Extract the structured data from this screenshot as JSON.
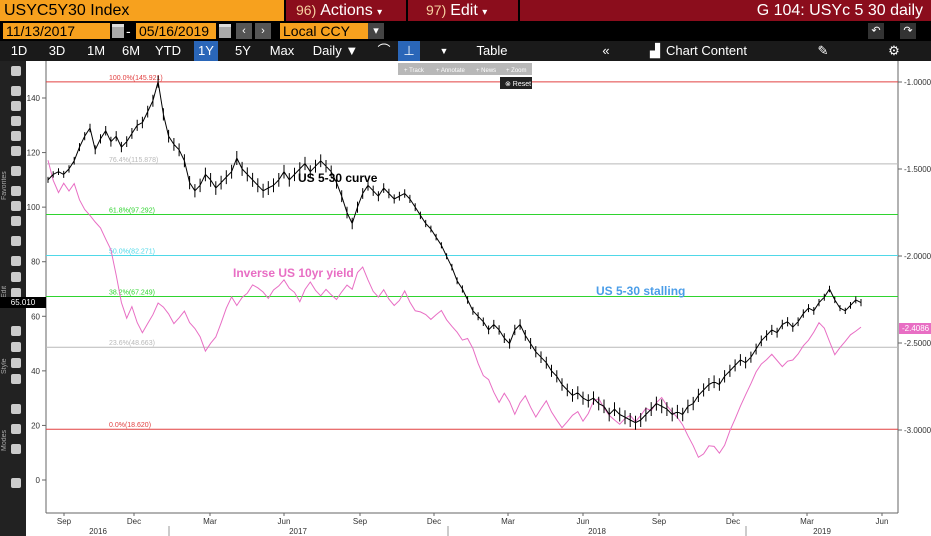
{
  "header": {
    "ticker": "USYC5Y30 Index",
    "actions_num": "96)",
    "actions_label": "Actions",
    "edit_num": "97)",
    "edit_label": "Edit",
    "title": "G 104: USYc 5 30 daily"
  },
  "range": {
    "start": "11/13/2017",
    "dash": "-",
    "end": "05/16/2019",
    "currency": "Local CCY"
  },
  "toolbar": {
    "periods": [
      "1D",
      "3D",
      "1M",
      "6M",
      "YTD",
      "1Y",
      "5Y",
      "Max"
    ],
    "active_period": "1Y",
    "frequency": "Daily",
    "table_label": "Table",
    "chart_content_label": "Chart Content"
  },
  "chart_tools": {
    "labels": [
      "Track",
      "Annotate",
      "News",
      "Zoom"
    ],
    "reset": "Reset"
  },
  "left_panel_labels": [
    "Favorites",
    "Edit",
    "Style",
    "Modes"
  ],
  "left_price_tag": "65.010",
  "right_price_tag": "-2.4086",
  "chart_data": {
    "type": "line",
    "x_tick_months": [
      "Sep",
      "Dec",
      "Mar",
      "Jun",
      "Sep",
      "Dec",
      "Mar",
      "Jun",
      "Sep",
      "Dec",
      "Mar",
      "Jun"
    ],
    "x_tick_years": [
      "2016",
      "2017",
      "2018",
      "2019"
    ],
    "y_left_ticks": [
      "140",
      "120",
      "100",
      "80",
      "60",
      "40",
      "20",
      "0"
    ],
    "y_right_ticks": [
      "-1.0000",
      "-1.5000",
      "-2.0000",
      "-2.5000",
      "-3.0000"
    ],
    "ylim_left": [
      -5,
      150
    ],
    "ylim_right": [
      -3.4,
      -0.85
    ],
    "series": [
      {
        "name": "US 5-30 curve",
        "color": "#000000"
      },
      {
        "name": "Inverse US 10yr yield",
        "color": "#e86ec4"
      }
    ],
    "fib_levels": [
      {
        "label": "100.0%(145.921)",
        "value": 145.921,
        "color": "#e24040"
      },
      {
        "label": "76.4%(115.878)",
        "value": 115.878,
        "color": "#b9b9b9"
      },
      {
        "label": "61.8%(97.292)",
        "value": 97.292,
        "color": "#2fd42f"
      },
      {
        "label": "50.0%(82.271)",
        "value": 82.271,
        "color": "#4fd8e8"
      },
      {
        "label": "38.2%(67.249)",
        "value": 67.249,
        "color": "#2fd42f"
      },
      {
        "label": "23.6%(48.663)",
        "value": 48.663,
        "color": "#b9b9b9"
      },
      {
        "label": "0.0%(18.620)",
        "value": 18.62,
        "color": "#e24040"
      }
    ],
    "annotations": [
      {
        "text": "US 5-30 curve",
        "color": "#000000"
      },
      {
        "text": "Inverse US 10yr yield",
        "color": "#e86ec4"
      },
      {
        "text": "US 5-30 stalling",
        "color": "#4a9de8"
      }
    ],
    "black_path": [
      [
        0,
        110
      ],
      [
        1,
        112
      ],
      [
        2,
        113
      ],
      [
        3,
        112
      ],
      [
        4,
        114
      ],
      [
        5,
        117
      ],
      [
        6,
        122
      ],
      [
        7,
        126
      ],
      [
        8,
        129
      ],
      [
        9,
        121
      ],
      [
        10,
        125
      ],
      [
        11,
        128
      ],
      [
        12,
        124
      ],
      [
        13,
        126
      ],
      [
        14,
        122
      ],
      [
        15,
        124
      ],
      [
        16,
        127
      ],
      [
        17,
        130
      ],
      [
        18,
        131
      ],
      [
        19,
        135
      ],
      [
        20,
        139
      ],
      [
        21,
        146
      ],
      [
        22,
        134
      ],
      [
        23,
        126
      ],
      [
        24,
        123
      ],
      [
        25,
        121
      ],
      [
        26,
        117
      ],
      [
        27,
        109
      ],
      [
        28,
        106
      ],
      [
        29,
        108
      ],
      [
        30,
        112
      ],
      [
        31,
        110
      ],
      [
        32,
        107
      ],
      [
        33,
        109
      ],
      [
        34,
        111
      ],
      [
        35,
        113
      ],
      [
        36,
        118
      ],
      [
        37,
        114
      ],
      [
        38,
        112
      ],
      [
        39,
        110
      ],
      [
        40,
        108
      ],
      [
        41,
        106
      ],
      [
        42,
        107
      ],
      [
        43,
        108
      ],
      [
        44,
        110
      ],
      [
        45,
        113
      ],
      [
        46,
        110
      ],
      [
        47,
        112
      ],
      [
        48,
        114
      ],
      [
        49,
        116
      ],
      [
        50,
        113
      ],
      [
        51,
        115
      ],
      [
        52,
        117
      ],
      [
        53,
        115
      ],
      [
        54,
        113
      ],
      [
        55,
        109
      ],
      [
        56,
        104
      ],
      [
        57,
        98
      ],
      [
        58,
        94
      ],
      [
        59,
        100
      ],
      [
        60,
        105
      ],
      [
        61,
        108
      ],
      [
        62,
        106
      ],
      [
        63,
        104
      ],
      [
        64,
        107
      ],
      [
        65,
        105
      ],
      [
        66,
        103
      ],
      [
        67,
        104
      ],
      [
        68,
        105
      ],
      [
        69,
        103
      ],
      [
        70,
        100
      ],
      [
        71,
        97
      ],
      [
        72,
        94
      ],
      [
        73,
        92
      ],
      [
        74,
        89
      ],
      [
        75,
        86
      ],
      [
        76,
        82
      ],
      [
        77,
        78
      ],
      [
        78,
        73
      ],
      [
        79,
        70
      ],
      [
        80,
        66
      ],
      [
        81,
        62
      ],
      [
        82,
        60
      ],
      [
        83,
        58
      ],
      [
        84,
        55
      ],
      [
        85,
        57
      ],
      [
        86,
        55
      ],
      [
        87,
        52
      ],
      [
        88,
        50
      ],
      [
        89,
        55
      ],
      [
        90,
        57
      ],
      [
        91,
        53
      ],
      [
        92,
        50
      ],
      [
        93,
        47
      ],
      [
        94,
        45
      ],
      [
        95,
        43
      ],
      [
        96,
        40
      ],
      [
        97,
        38
      ],
      [
        98,
        35
      ],
      [
        99,
        33
      ],
      [
        100,
        31
      ],
      [
        101,
        32
      ],
      [
        102,
        30
      ],
      [
        103,
        29
      ],
      [
        104,
        30
      ],
      [
        105,
        28
      ],
      [
        106,
        27
      ],
      [
        107,
        24
      ],
      [
        108,
        26
      ],
      [
        109,
        24
      ],
      [
        110,
        23
      ],
      [
        111,
        22
      ],
      [
        112,
        21
      ],
      [
        113,
        22
      ],
      [
        114,
        24
      ],
      [
        115,
        26
      ],
      [
        116,
        28
      ],
      [
        117,
        27
      ],
      [
        118,
        26
      ],
      [
        119,
        24
      ],
      [
        120,
        25
      ],
      [
        121,
        24
      ],
      [
        122,
        27
      ],
      [
        123,
        28
      ],
      [
        124,
        31
      ],
      [
        125,
        33
      ],
      [
        126,
        35
      ],
      [
        127,
        36
      ],
      [
        128,
        35
      ],
      [
        129,
        38
      ],
      [
        130,
        40
      ],
      [
        131,
        42
      ],
      [
        132,
        44
      ],
      [
        133,
        43
      ],
      [
        134,
        45
      ],
      [
        135,
        48
      ],
      [
        136,
        51
      ],
      [
        137,
        53
      ],
      [
        138,
        55
      ],
      [
        139,
        54
      ],
      [
        140,
        57
      ],
      [
        141,
        58
      ],
      [
        142,
        56
      ],
      [
        143,
        58
      ],
      [
        144,
        61
      ],
      [
        145,
        63
      ],
      [
        146,
        62
      ],
      [
        147,
        65
      ],
      [
        148,
        67
      ],
      [
        149,
        70
      ],
      [
        150,
        66
      ],
      [
        151,
        63
      ],
      [
        152,
        62
      ],
      [
        153,
        64
      ],
      [
        154,
        66
      ],
      [
        155,
        65
      ]
    ],
    "pink_path": [
      [
        0,
        -1.45
      ],
      [
        1,
        -1.55
      ],
      [
        2,
        -1.62
      ],
      [
        3,
        -1.58
      ],
      [
        4,
        -1.64
      ],
      [
        5,
        -1.6
      ],
      [
        6,
        -1.68
      ],
      [
        7,
        -1.72
      ],
      [
        8,
        -1.75
      ],
      [
        9,
        -1.8
      ],
      [
        10,
        -1.85
      ],
      [
        11,
        -1.92
      ],
      [
        12,
        -1.97
      ],
      [
        13,
        -2.1
      ],
      [
        14,
        -2.25
      ],
      [
        15,
        -2.35
      ],
      [
        16,
        -2.3
      ],
      [
        17,
        -2.4
      ],
      [
        18,
        -2.45
      ],
      [
        19,
        -2.38
      ],
      [
        20,
        -2.32
      ],
      [
        21,
        -2.26
      ],
      [
        22,
        -2.3
      ],
      [
        23,
        -2.35
      ],
      [
        24,
        -2.4
      ],
      [
        25,
        -2.35
      ],
      [
        26,
        -2.3
      ],
      [
        27,
        -2.37
      ],
      [
        28,
        -2.42
      ],
      [
        29,
        -2.48
      ],
      [
        30,
        -2.56
      ],
      [
        31,
        -2.5
      ],
      [
        32,
        -2.45
      ],
      [
        33,
        -2.37
      ],
      [
        34,
        -2.3
      ],
      [
        35,
        -2.25
      ],
      [
        36,
        -2.3
      ],
      [
        37,
        -2.24
      ],
      [
        38,
        -2.2
      ],
      [
        39,
        -2.15
      ],
      [
        40,
        -2.18
      ],
      [
        41,
        -2.22
      ],
      [
        42,
        -2.26
      ],
      [
        43,
        -2.2
      ],
      [
        44,
        -2.16
      ],
      [
        45,
        -2.12
      ],
      [
        46,
        -2.18
      ],
      [
        47,
        -2.22
      ],
      [
        48,
        -2.28
      ],
      [
        49,
        -2.2
      ],
      [
        50,
        -2.14
      ],
      [
        51,
        -2.18
      ],
      [
        52,
        -2.22
      ],
      [
        53,
        -2.2
      ],
      [
        54,
        -2.24
      ],
      [
        55,
        -2.26
      ],
      [
        56,
        -2.2
      ],
      [
        57,
        -2.15
      ],
      [
        58,
        -2.18
      ],
      [
        59,
        -2.1
      ],
      [
        60,
        -2.08
      ],
      [
        61,
        -2.15
      ],
      [
        62,
        -2.2
      ],
      [
        63,
        -2.22
      ],
      [
        64,
        -2.18
      ],
      [
        65,
        -2.25
      ],
      [
        66,
        -2.3
      ],
      [
        67,
        -2.27
      ],
      [
        68,
        -2.2
      ],
      [
        69,
        -2.25
      ],
      [
        70,
        -2.3
      ],
      [
        71,
        -2.32
      ],
      [
        72,
        -2.35
      ],
      [
        73,
        -2.38
      ],
      [
        74,
        -2.34
      ],
      [
        75,
        -2.3
      ],
      [
        76,
        -2.35
      ],
      [
        77,
        -2.4
      ],
      [
        78,
        -2.45
      ],
      [
        79,
        -2.5
      ],
      [
        80,
        -2.48
      ],
      [
        81,
        -2.52
      ],
      [
        82,
        -2.6
      ],
      [
        83,
        -2.68
      ],
      [
        84,
        -2.72
      ],
      [
        85,
        -2.8
      ],
      [
        86,
        -2.85
      ],
      [
        87,
        -2.78
      ],
      [
        88,
        -2.82
      ],
      [
        89,
        -2.9
      ],
      [
        90,
        -2.85
      ],
      [
        91,
        -2.82
      ],
      [
        92,
        -2.88
      ],
      [
        93,
        -2.92
      ],
      [
        94,
        -2.86
      ],
      [
        95,
        -2.82
      ],
      [
        96,
        -2.9
      ],
      [
        97,
        -2.96
      ],
      [
        98,
        -3.0
      ],
      [
        99,
        -2.95
      ],
      [
        100,
        -2.9
      ],
      [
        101,
        -2.88
      ],
      [
        102,
        -2.95
      ],
      [
        103,
        -2.92
      ],
      [
        104,
        -2.85
      ],
      [
        105,
        -2.82
      ],
      [
        106,
        -2.86
      ],
      [
        107,
        -2.9
      ],
      [
        108,
        -2.94
      ],
      [
        109,
        -2.98
      ],
      [
        110,
        -2.95
      ],
      [
        111,
        -2.92
      ],
      [
        112,
        -2.94
      ],
      [
        113,
        -2.9
      ],
      [
        114,
        -2.87
      ],
      [
        115,
        -2.9
      ],
      [
        116,
        -2.86
      ],
      [
        117,
        -2.82
      ],
      [
        118,
        -2.85
      ],
      [
        119,
        -2.88
      ],
      [
        120,
        -2.92
      ],
      [
        121,
        -2.98
      ],
      [
        122,
        -3.05
      ],
      [
        123,
        -3.1
      ],
      [
        124,
        -3.15
      ],
      [
        125,
        -3.12
      ],
      [
        126,
        -3.08
      ],
      [
        127,
        -3.1
      ],
      [
        128,
        -3.15
      ],
      [
        129,
        -3.1
      ],
      [
        130,
        -3.0
      ],
      [
        131,
        -2.92
      ],
      [
        132,
        -2.85
      ],
      [
        133,
        -2.8
      ],
      [
        134,
        -2.75
      ],
      [
        135,
        -2.68
      ],
      [
        136,
        -2.62
      ],
      [
        137,
        -2.58
      ],
      [
        138,
        -2.55
      ],
      [
        139,
        -2.6
      ],
      [
        140,
        -2.65
      ],
      [
        141,
        -2.62
      ],
      [
        142,
        -2.6
      ],
      [
        143,
        -2.55
      ],
      [
        144,
        -2.5
      ],
      [
        145,
        -2.48
      ],
      [
        146,
        -2.45
      ],
      [
        147,
        -2.4
      ],
      [
        148,
        -2.42
      ],
      [
        149,
        -2.48
      ],
      [
        150,
        -2.55
      ],
      [
        151,
        -2.52
      ],
      [
        152,
        -2.5
      ],
      [
        153,
        -2.47
      ],
      [
        154,
        -2.44
      ],
      [
        155,
        -2.4
      ]
    ]
  }
}
